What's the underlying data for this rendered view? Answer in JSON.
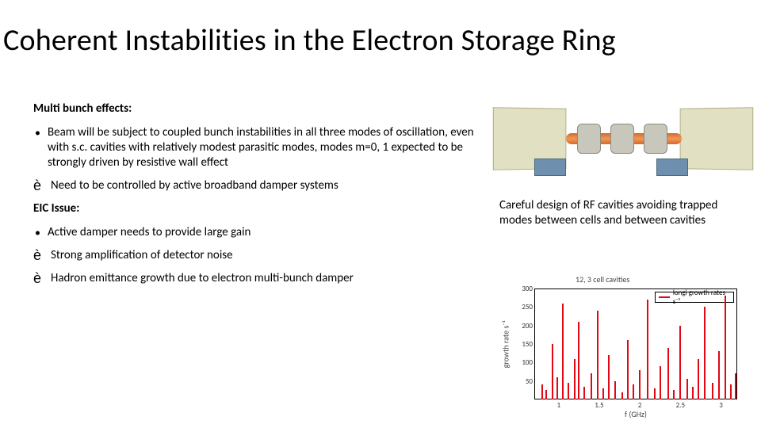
{
  "title": "Coherent Instabilities in the Electron Storage Ring",
  "left": {
    "section1_label": "Multi bunch effects:",
    "bullet1": "Beam will be subject to coupled bunch instabilities in all three modes of oscillation, even with s.c. cavities with relatively modest parasitic modes, modes m=0, 1 expected to be strongly driven by resistive wall effect",
    "arrow1": "Need to be controlled by active broadband damper systems",
    "section2_label": "EIC Issue:",
    "bullet2": "Active damper needs to provide  large gain",
    "arrow2": "Strong amplification of detector noise",
    "arrow3": " Hadron emittance growth due to electron multi-bunch damper"
  },
  "right": {
    "caption": "Careful design of RF cavities avoiding trapped modes between cells and between cavities"
  },
  "arrow_glyph": "è",
  "bullet_glyph": "•",
  "chart": {
    "type": "bar",
    "title": "12, 3 cell cavities",
    "ylabel": "growth rate s⁻¹",
    "xlabel": "f (GHz)",
    "legend": "longi growth rates s⁻¹",
    "bar_color": "#e30613",
    "border_color": "#000000",
    "background_color": "#ffffff",
    "xlim": [
      0.7,
      3.2
    ],
    "ylim": [
      0,
      300
    ],
    "xticks": [
      1,
      1.5,
      2,
      2.5,
      3
    ],
    "yticks": [
      50,
      100,
      150,
      200,
      250,
      300
    ],
    "bars": [
      {
        "f": 0.8,
        "v": 40
      },
      {
        "f": 0.85,
        "v": 25
      },
      {
        "f": 0.92,
        "v": 150
      },
      {
        "f": 0.98,
        "v": 60
      },
      {
        "f": 1.05,
        "v": 260
      },
      {
        "f": 1.12,
        "v": 45
      },
      {
        "f": 1.2,
        "v": 110
      },
      {
        "f": 1.25,
        "v": 210
      },
      {
        "f": 1.32,
        "v": 35
      },
      {
        "f": 1.4,
        "v": 70
      },
      {
        "f": 1.48,
        "v": 240
      },
      {
        "f": 1.55,
        "v": 30
      },
      {
        "f": 1.62,
        "v": 120
      },
      {
        "f": 1.7,
        "v": 50
      },
      {
        "f": 1.78,
        "v": 20
      },
      {
        "f": 1.85,
        "v": 160
      },
      {
        "f": 1.92,
        "v": 40
      },
      {
        "f": 2.0,
        "v": 80
      },
      {
        "f": 2.1,
        "v": 270
      },
      {
        "f": 2.18,
        "v": 30
      },
      {
        "f": 2.25,
        "v": 90
      },
      {
        "f": 2.35,
        "v": 140
      },
      {
        "f": 2.42,
        "v": 25
      },
      {
        "f": 2.5,
        "v": 200
      },
      {
        "f": 2.58,
        "v": 55
      },
      {
        "f": 2.65,
        "v": 35
      },
      {
        "f": 2.72,
        "v": 110
      },
      {
        "f": 2.8,
        "v": 250
      },
      {
        "f": 2.9,
        "v": 45
      },
      {
        "f": 2.98,
        "v": 130
      },
      {
        "f": 3.05,
        "v": 280
      },
      {
        "f": 3.12,
        "v": 40
      },
      {
        "f": 3.18,
        "v": 70
      }
    ]
  },
  "cad": {
    "block_color": "#e1e0c3",
    "block_border": "#b0ad82",
    "beamline_color": "#d46a2a",
    "cavity_color": "#c8c7bb",
    "base_color": "#6e8fae"
  }
}
